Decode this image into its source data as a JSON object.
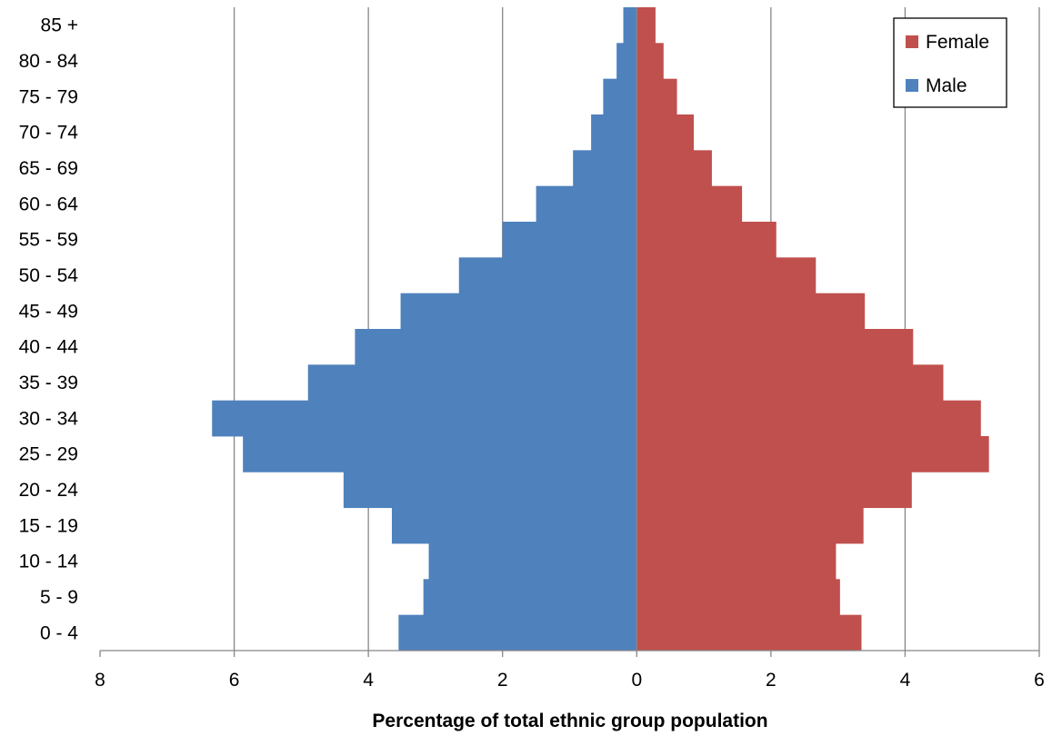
{
  "chart_data": {
    "type": "bar",
    "orientation": "horizontal",
    "subtype": "population-pyramid",
    "title": "",
    "xlabel": "Percentage of total ethnic group population",
    "ylabel": "",
    "categories": [
      "0 - 4",
      "5 - 9",
      "10 - 14",
      "15 - 19",
      "20 - 24",
      "25 - 29",
      "30 - 34",
      "35 - 39",
      "40 - 44",
      "45 - 49",
      "50 - 54",
      "55 - 59",
      "60 - 64",
      "65 - 69",
      "70 - 74",
      "75 - 79",
      "80 - 84",
      "85 +"
    ],
    "series": [
      {
        "name": "Male",
        "side": "left",
        "color": "#4f81bd",
        "values": [
          3.55,
          3.18,
          3.1,
          3.65,
          4.37,
          5.87,
          6.33,
          4.9,
          4.2,
          3.52,
          2.65,
          2.0,
          1.5,
          0.95,
          0.68,
          0.5,
          0.3,
          0.2
        ]
      },
      {
        "name": "Female",
        "side": "right",
        "color": "#c0504d",
        "values": [
          3.35,
          3.03,
          2.97,
          3.38,
          4.1,
          5.25,
          5.13,
          4.57,
          4.12,
          3.4,
          2.67,
          2.08,
          1.57,
          1.12,
          0.85,
          0.6,
          0.4,
          0.28
        ]
      }
    ],
    "xlim": [
      -8,
      6
    ],
    "x_ticks": [
      -8,
      -6,
      -4,
      -2,
      0,
      2,
      4,
      6
    ],
    "x_tick_labels": [
      "8",
      "6",
      "4",
      "2",
      "0",
      "2",
      "4",
      "6"
    ],
    "grid": {
      "vertical": true,
      "horizontal": false
    },
    "legend": {
      "position": "top-right",
      "entries": [
        "Female",
        "Male"
      ]
    }
  }
}
